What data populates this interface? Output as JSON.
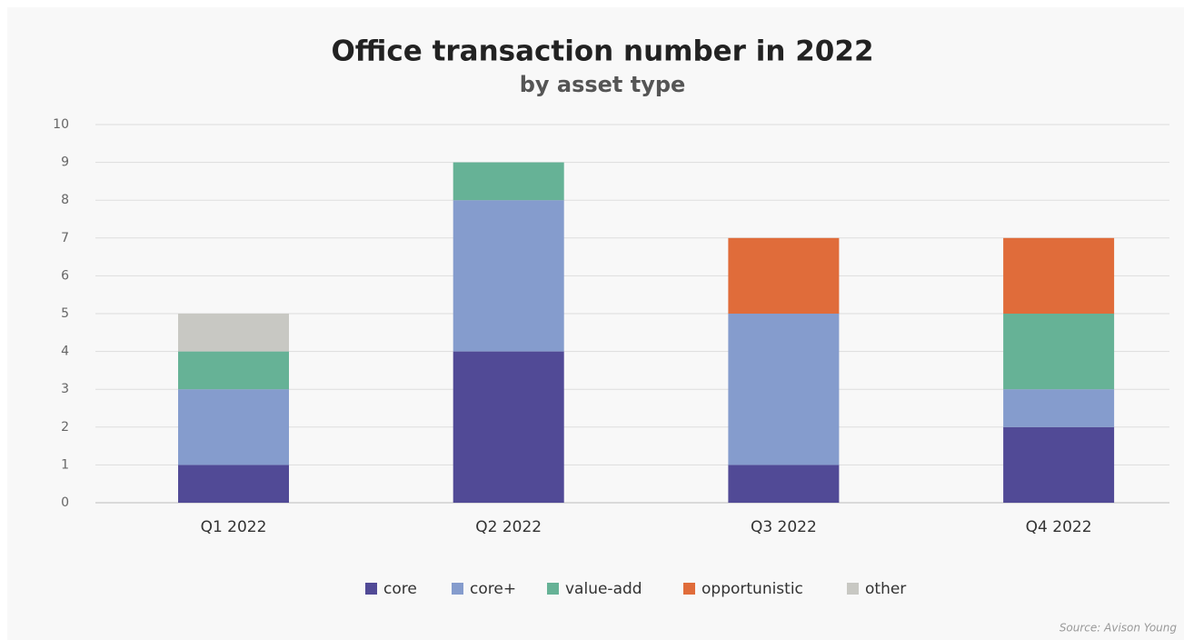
{
  "chart_data": {
    "type": "stacked_bar",
    "title": "Office transaction number in 2022",
    "subtitle": "by asset type",
    "categories": [
      "Q1 2022",
      "Q2 2022",
      "Q3 2022",
      "Q4 2022"
    ],
    "series": [
      {
        "name": "core",
        "color": "#514a96",
        "values": [
          1,
          4,
          1,
          2
        ]
      },
      {
        "name": "core+",
        "color": "#859ccd",
        "values": [
          2,
          4,
          4,
          1
        ]
      },
      {
        "name": "value-add",
        "color": "#66b296",
        "values": [
          1,
          1,
          0,
          2
        ]
      },
      {
        "name": "opportunistic",
        "color": "#e06c3a",
        "values": [
          0,
          0,
          2,
          2
        ]
      },
      {
        "name": "other",
        "color": "#c8c8c3",
        "values": [
          1,
          0,
          0,
          0
        ]
      }
    ],
    "ylim": [
      0,
      10
    ],
    "yticks": [
      0,
      1,
      2,
      3,
      4,
      5,
      6,
      7,
      8,
      9,
      10
    ],
    "grid": true,
    "legend": "bottom",
    "source": "Source: Avison Young"
  }
}
